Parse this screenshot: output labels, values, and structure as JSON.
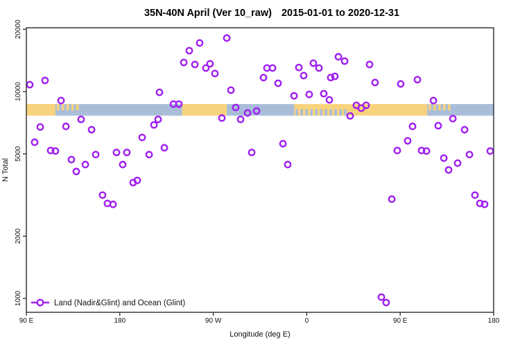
{
  "chart_data": {
    "type": "scatter",
    "title": "35N-40N April (Ver 10_raw)",
    "subtitle": "2015-01-01 to 2020-12-31",
    "xlabel": "Longitude (deg E)",
    "ylabel": "N Total",
    "legend": "Land (Nadir&Glint) and Ocean (Glint)",
    "marker_color": "#A020F0",
    "axis_color": "#2b2b2b",
    "xlim": [
      90,
      540
    ],
    "ylim": [
      857,
      20350
    ],
    "x_ticks": [
      {
        "lon": 90,
        "label": "90 E"
      },
      {
        "lon": 180,
        "label": "180"
      },
      {
        "lon": 270,
        "label": "90 W"
      },
      {
        "lon": 360,
        "label": "0"
      },
      {
        "lon": 450,
        "label": "90 E"
      },
      {
        "lon": 540,
        "label": "180"
      }
    ],
    "y_ticks": [
      1000,
      2000,
      5000,
      10000,
      20000
    ],
    "band": {
      "value_top": 8700,
      "value_bottom": 7650,
      "land_color": "#F7D37D",
      "ocean_color": "#A9BDD9",
      "segments": [
        {
          "from": 90,
          "to": 118,
          "type": "land"
        },
        {
          "from": 118,
          "to": 141,
          "type": "mixed_ocean"
        },
        {
          "from": 141,
          "to": 240,
          "type": "ocean"
        },
        {
          "from": 240,
          "to": 283,
          "type": "land"
        },
        {
          "from": 283,
          "to": 348,
          "type": "ocean"
        },
        {
          "from": 348,
          "to": 399,
          "type": "mixed_land"
        },
        {
          "from": 399,
          "to": 476,
          "type": "land"
        },
        {
          "from": 476,
          "to": 502,
          "type": "mixed_ocean"
        },
        {
          "from": 502,
          "to": 540,
          "type": "ocean"
        }
      ]
    },
    "points": [
      [
        93.3,
        10800
      ],
      [
        108,
        11320
      ],
      [
        123.4,
        9050
      ],
      [
        142.7,
        7340
      ],
      [
        103.4,
        6740
      ],
      [
        128.1,
        6790
      ],
      [
        152.8,
        6540
      ],
      [
        98,
        5690
      ],
      [
        113.4,
        5190
      ],
      [
        118,
        5160
      ],
      [
        133.4,
        4690
      ],
      [
        146.8,
        4440
      ],
      [
        138.1,
        4110
      ],
      [
        156.8,
        4960
      ],
      [
        176.8,
        5080
      ],
      [
        186.8,
        5080
      ],
      [
        182.8,
        4440
      ],
      [
        201.5,
        6000
      ],
      [
        208.2,
        4960
      ],
      [
        212.9,
        6900
      ],
      [
        216.9,
        7340
      ],
      [
        218.2,
        9920
      ],
      [
        222.9,
        5350
      ],
      [
        231.6,
        8700
      ],
      [
        236.9,
        8700
      ],
      [
        241.6,
        13830
      ],
      [
        192.8,
        3630
      ],
      [
        196.8,
        3720
      ],
      [
        163.4,
        3160
      ],
      [
        168.1,
        2880
      ],
      [
        173.5,
        2850
      ],
      [
        246.9,
        15770
      ],
      [
        256.9,
        17180
      ],
      [
        283,
        18150
      ],
      [
        252.3,
        13520
      ],
      [
        262.9,
        13000
      ],
      [
        266.9,
        13630
      ],
      [
        271.6,
        12230
      ],
      [
        287,
        10160
      ],
      [
        318.4,
        11690
      ],
      [
        321.7,
        13000
      ],
      [
        327.1,
        13000
      ],
      [
        332.4,
        10970
      ],
      [
        347.8,
        9540
      ],
      [
        352.4,
        13080
      ],
      [
        357.1,
        11950
      ],
      [
        362.4,
        9690
      ],
      [
        366.4,
        13720
      ],
      [
        371.8,
        13000
      ],
      [
        376.4,
        9770
      ],
      [
        381.8,
        9120
      ],
      [
        383.1,
        11690
      ],
      [
        387.1,
        11850
      ],
      [
        390.5,
        14730
      ],
      [
        396.5,
        14040
      ],
      [
        291.6,
        8380
      ],
      [
        296.3,
        7340
      ],
      [
        303,
        7880
      ],
      [
        311.7,
        8060
      ],
      [
        278.3,
        7450
      ],
      [
        307,
        5080
      ],
      [
        337.1,
        5600
      ],
      [
        341.7,
        4440
      ],
      [
        401.8,
        7630
      ],
      [
        420.5,
        13520
      ],
      [
        425.8,
        11060
      ],
      [
        450.5,
        10890
      ],
      [
        466.6,
        11420
      ],
      [
        407.8,
        8580
      ],
      [
        412.5,
        8310
      ],
      [
        417.2,
        8580
      ],
      [
        482,
        9050
      ],
      [
        500.7,
        7400
      ],
      [
        461.9,
        6790
      ],
      [
        486.6,
        6840
      ],
      [
        512,
        6540
      ],
      [
        457.2,
        5780
      ],
      [
        447.2,
        5190
      ],
      [
        470.6,
        5190
      ],
      [
        475.3,
        5160
      ],
      [
        492,
        4770
      ],
      [
        505.3,
        4510
      ],
      [
        516.7,
        4960
      ],
      [
        536.7,
        5160
      ],
      [
        496.6,
        4180
      ],
      [
        441.9,
        3020
      ],
      [
        522,
        3160
      ],
      [
        526.7,
        2880
      ],
      [
        531.3,
        2850
      ],
      [
        431.9,
        1015
      ],
      [
        436.5,
        955
      ]
    ]
  }
}
